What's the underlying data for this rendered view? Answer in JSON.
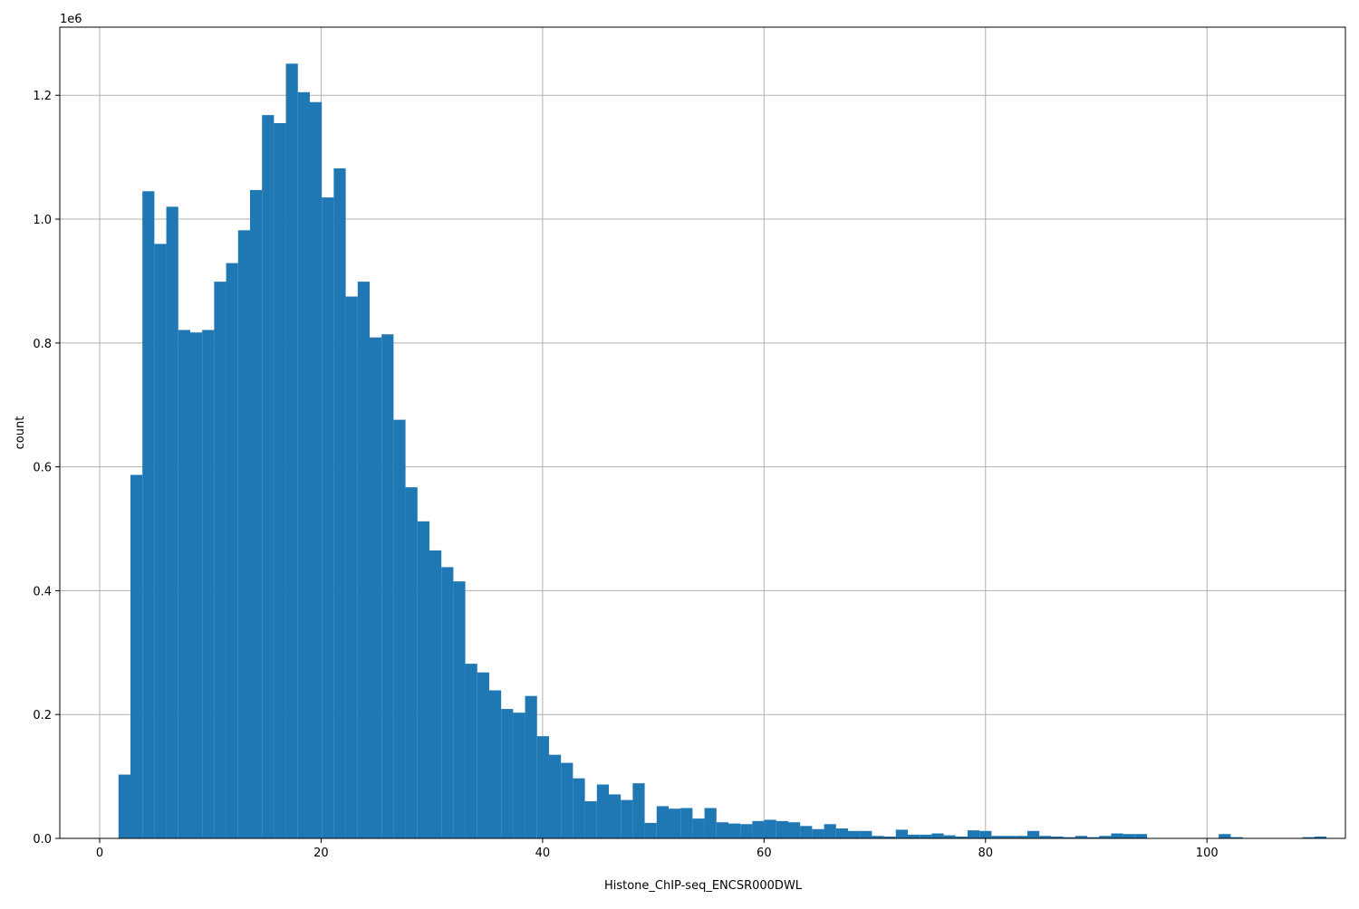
{
  "chart_data": {
    "type": "bar",
    "xlabel": "Histone_ChIP-seq_ENCSR000DWL",
    "ylabel": "count",
    "y_offset_label": "1e6",
    "xlim": [
      -3.6,
      112.5
    ],
    "ylim": [
      0,
      1.31
    ],
    "xticks": [
      0,
      20,
      40,
      60,
      80,
      100
    ],
    "yticks": [
      0.0,
      0.2,
      0.4,
      0.6,
      0.8,
      1.0,
      1.2
    ],
    "xtick_labels": [
      "0",
      "20",
      "40",
      "60",
      "80",
      "100"
    ],
    "ytick_labels": [
      "0.0",
      "0.2",
      "0.4",
      "0.6",
      "0.8",
      "1.0",
      "1.2"
    ],
    "grid": true,
    "bar_color": "#1f77b4",
    "bin_start": 1.7,
    "bin_width": 1.08,
    "values": [
      0.103,
      0.587,
      1.045,
      0.96,
      1.02,
      0.821,
      0.817,
      0.821,
      0.899,
      0.929,
      0.982,
      1.047,
      1.168,
      1.155,
      1.251,
      1.205,
      1.189,
      1.035,
      1.082,
      0.875,
      0.899,
      0.809,
      0.814,
      0.676,
      0.567,
      0.512,
      0.465,
      0.438,
      0.415,
      0.282,
      0.268,
      0.239,
      0.209,
      0.203,
      0.23,
      0.165,
      0.135,
      0.122,
      0.097,
      0.06,
      0.087,
      0.071,
      0.062,
      0.089,
      0.025,
      0.052,
      0.048,
      0.049,
      0.032,
      0.049,
      0.026,
      0.024,
      0.023,
      0.028,
      0.03,
      0.028,
      0.026,
      0.02,
      0.015,
      0.023,
      0.016,
      0.012,
      0.012,
      0.004,
      0.003,
      0.014,
      0.006,
      0.006,
      0.008,
      0.005,
      0.003,
      0.013,
      0.012,
      0.004,
      0.004,
      0.004,
      0.012,
      0.004,
      0.003,
      0.002,
      0.004,
      0.002,
      0.004,
      0.008,
      0.007,
      0.007,
      0,
      0,
      0,
      0,
      0,
      0,
      0.007,
      0.002,
      0,
      0,
      0,
      0,
      0,
      0.002,
      0.003
    ]
  }
}
